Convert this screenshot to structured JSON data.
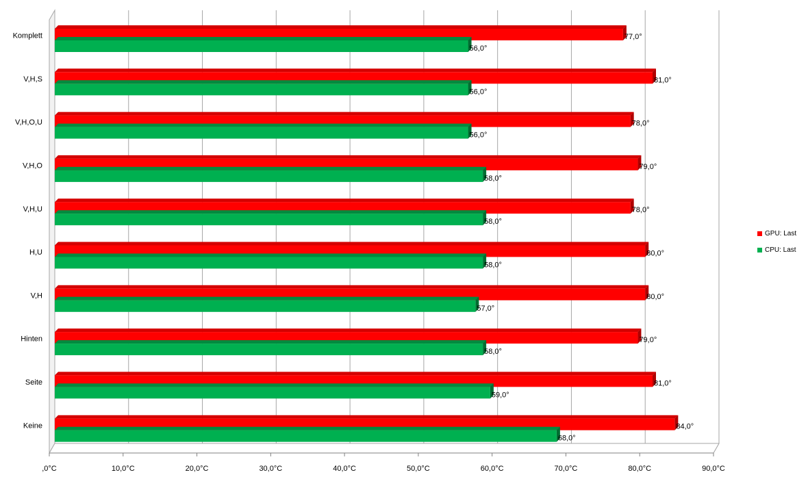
{
  "chart_data": {
    "type": "bar",
    "orientation": "horizontal",
    "three_d": true,
    "categories": [
      "Komplett",
      "V,H,S",
      "V,H,O,U",
      "V,H,O",
      "V,H,U",
      "H,U",
      "V,H",
      "Hinten",
      "Seite",
      "Keine"
    ],
    "series": [
      {
        "name": "GPU: Last",
        "color": "#ff0000",
        "values": [
          77.0,
          81.0,
          78.0,
          79.0,
          78.0,
          80.0,
          80.0,
          79.0,
          81.0,
          84.0
        ],
        "data_labels": [
          "77,0°",
          "81,0°",
          "78,0°",
          "79,0°",
          "78,0°",
          "80,0°",
          "80,0°",
          "79,0°",
          "81,0°",
          "84,0°"
        ]
      },
      {
        "name": "CPU: Last",
        "color": "#00b050",
        "values": [
          56.0,
          56.0,
          56.0,
          58.0,
          58.0,
          58.0,
          57.0,
          58.0,
          59.0,
          68.0
        ],
        "data_labels": [
          "56,0°",
          "56,0°",
          "56,0°",
          "58,0°",
          "58,0°",
          "58,0°",
          "57,0°",
          "58,0°",
          "59,0°",
          "68,0°"
        ]
      }
    ],
    "xlim": [
      0,
      90
    ],
    "x_ticks": [
      0,
      10,
      20,
      30,
      40,
      50,
      60,
      70,
      80,
      90
    ],
    "x_tick_labels": [
      ",0°C",
      "10,0°C",
      "20,0°C",
      "30,0°C",
      "40,0°C",
      "50,0°C",
      "60,0°C",
      "70,0°C",
      "80,0°C",
      "90,0°C"
    ],
    "grid": true,
    "legend_position": "right",
    "title": "",
    "xlabel": "",
    "ylabel": ""
  }
}
